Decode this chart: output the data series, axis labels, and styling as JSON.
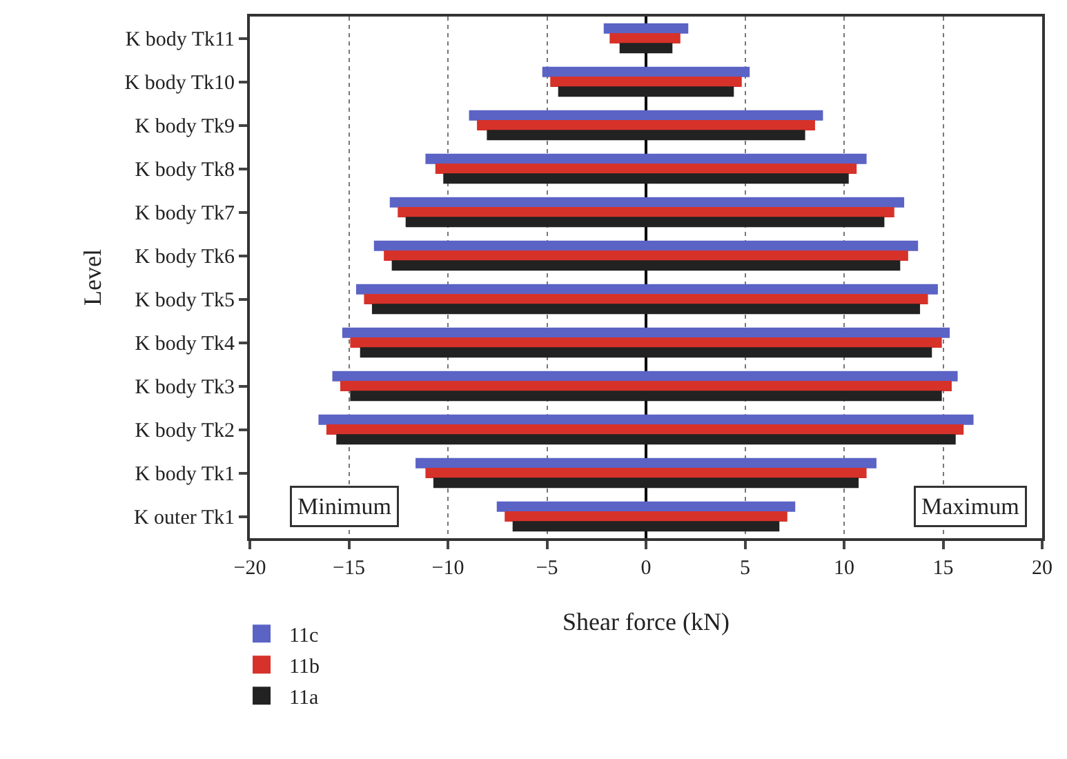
{
  "chart_data": {
    "type": "bar",
    "orientation": "horizontal",
    "xlabel": "Shear force (kN)",
    "ylabel": "Level",
    "categories": [
      "K body Tk11",
      "K body Tk10",
      "K body Tk9",
      "K body Tk8",
      "K body Tk7",
      "K body Tk6",
      "K body Tk5",
      "K body Tk4",
      "K body Tk3",
      "K body Tk2",
      "K body Tk1",
      "K outer Tk1"
    ],
    "series": [
      {
        "name": "11c",
        "color": "#5b63c5",
        "base": [
          -2.1,
          -5.2,
          -8.9,
          -11.1,
          -12.9,
          -13.7,
          -14.6,
          -15.3,
          -15.8,
          -16.5,
          -11.6,
          -7.5
        ],
        "values": [
          4.2,
          10.4,
          17.8,
          22.2,
          25.9,
          27.4,
          29.3,
          30.6,
          31.5,
          33.0,
          23.2,
          15.0
        ]
      },
      {
        "name": "11b",
        "color": "#d6322a",
        "base": [
          -1.8,
          -4.8,
          -8.5,
          -10.6,
          -12.5,
          -13.2,
          -14.2,
          -14.9,
          -15.4,
          -16.1,
          -11.1,
          -7.1
        ],
        "values": [
          3.5,
          9.6,
          17.0,
          21.2,
          25.0,
          26.4,
          28.4,
          29.8,
          30.8,
          32.1,
          22.2,
          14.2
        ]
      },
      {
        "name": "11a",
        "color": "#222222",
        "base": [
          -1.3,
          -4.4,
          -8.0,
          -10.2,
          -12.1,
          -12.8,
          -13.8,
          -14.4,
          -14.9,
          -15.6,
          -10.7,
          -6.7
        ],
        "values": [
          2.6,
          8.8,
          16.0,
          20.4,
          24.1,
          25.6,
          27.6,
          28.8,
          29.8,
          31.2,
          21.4,
          13.4
        ]
      }
    ],
    "xlim": [
      -20,
      20
    ],
    "xticks": [
      -20,
      -15,
      -10,
      -5,
      0,
      5,
      10,
      15,
      20
    ],
    "grid": true,
    "legend": "bottom left",
    "annotations": [
      "Minimum",
      "Maximum"
    ]
  }
}
